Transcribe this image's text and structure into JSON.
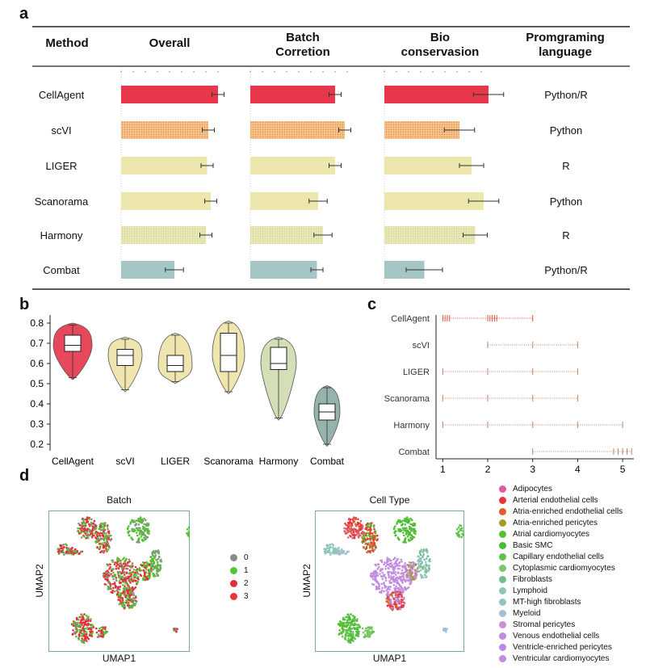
{
  "panel_a": {
    "letter": "a",
    "headers": {
      "method": "Method",
      "overall": "Overall",
      "batch": "Batch\nCorretion",
      "bio": "Bio\nconservasion",
      "lang": "Promgraming\nlanguage"
    },
    "colors": {
      "CellAgent": "#e8374a",
      "scVI": "#f6ba7a",
      "LIGER": "#ede6ad",
      "Scanorama": "#ede6ad",
      "Harmony": "#e4e5ab",
      "Combat": "#a4c6c5"
    }
  },
  "panel_b": {
    "letter": "b"
  },
  "panel_c": {
    "letter": "c"
  },
  "panel_d": {
    "letter": "d"
  },
  "chart_data": [
    {
      "type": "bar",
      "panel": "a",
      "categories": [
        "CellAgent",
        "scVI",
        "LIGER",
        "Scanorama",
        "Harmony",
        "Combat"
      ],
      "languages": [
        "Python/R",
        "Python",
        "R",
        "Python",
        "R",
        "Python/R"
      ],
      "series": [
        {
          "name": "Overall",
          "values": [
            0.8,
            0.72,
            0.71,
            0.74,
            0.7,
            0.44
          ],
          "errors": [
            0.02,
            0.02,
            0.02,
            0.02,
            0.02,
            0.03
          ]
        },
        {
          "name": "Batch\nCorretion",
          "values": [
            0.7,
            0.78,
            0.7,
            0.56,
            0.6,
            0.55
          ],
          "errors": [
            0.02,
            0.02,
            0.02,
            0.03,
            0.03,
            0.02
          ]
        },
        {
          "name": "Bio\nconservasion",
          "values": [
            0.86,
            0.62,
            0.72,
            0.82,
            0.75,
            0.33
          ],
          "errors": [
            0.05,
            0.05,
            0.04,
            0.05,
            0.04,
            0.06
          ]
        }
      ]
    },
    {
      "type": "violin",
      "panel": "b",
      "categories": [
        "CellAgent",
        "scVI",
        "LIGER",
        "Scanorama",
        "Harmony",
        "Combat"
      ],
      "yticks": [
        "0.2",
        "0.3",
        "0.4",
        "0.5",
        "0.6",
        "0.7",
        "0.8"
      ],
      "ylim": [
        0.18,
        0.82
      ],
      "boxes": [
        {
          "min": 0.53,
          "q1": 0.66,
          "median": 0.69,
          "q3": 0.74,
          "max": 0.79
        },
        {
          "min": 0.47,
          "q1": 0.59,
          "median": 0.64,
          "q3": 0.67,
          "max": 0.72
        },
        {
          "min": 0.51,
          "q1": 0.56,
          "median": 0.59,
          "q3": 0.64,
          "max": 0.74
        },
        {
          "min": 0.46,
          "q1": 0.56,
          "median": 0.64,
          "q3": 0.75,
          "max": 0.8
        },
        {
          "min": 0.33,
          "q1": 0.57,
          "median": 0.6,
          "q3": 0.68,
          "max": 0.72
        },
        {
          "min": 0.2,
          "q1": 0.32,
          "median": 0.36,
          "q3": 0.4,
          "max": 0.48
        }
      ],
      "colors": [
        "#e5344a",
        "#ede3a6",
        "#ede3a6",
        "#ede3a6",
        "#cfdcb0",
        "#8aaaa3"
      ]
    },
    {
      "type": "scatter",
      "panel": "c",
      "categories": [
        "CellAgent",
        "scVI",
        "LIGER",
        "Scanorama",
        "Harmony",
        "Combat"
      ],
      "xticks": [
        "1",
        "2",
        "3",
        "4",
        "5"
      ],
      "xlim": [
        0.85,
        5.25
      ],
      "ranges": [
        [
          1,
          3
        ],
        [
          2,
          4
        ],
        [
          1,
          4
        ],
        [
          1,
          4
        ],
        [
          1,
          5
        ],
        [
          3,
          5.2
        ]
      ]
    }
  ],
  "panel_d_batch": {
    "title": "Batch",
    "xlabel": "UMAP1",
    "ylabel": "UMAP2",
    "legend": [
      {
        "label": "0",
        "color": "#8a8a8a"
      },
      {
        "label": "1",
        "color": "#52c42f"
      },
      {
        "label": "2",
        "color": "#e32d3a"
      },
      {
        "label": "3",
        "color": "#e8343f"
      }
    ]
  },
  "panel_d_celltype": {
    "title": "Cell Type",
    "xlabel": "UMAP1",
    "ylabel": "UMAP2",
    "legend": [
      {
        "label": "Adipocytes",
        "color": "#e05aa0"
      },
      {
        "label": "Arterial endothelial cells",
        "color": "#e8343f"
      },
      {
        "label": "Atria-enriched endothelial cells",
        "color": "#d9622e"
      },
      {
        "label": "Atria-enriched pericytes",
        "color": "#a59a2c"
      },
      {
        "label": "Atrial cardiomyocytes",
        "color": "#56c02f"
      },
      {
        "label": "Basic SMC",
        "color": "#4cb93a"
      },
      {
        "label": "Capillary endothelial cells",
        "color": "#5ec24a"
      },
      {
        "label": "Cytoplasmic cardiomyocytes",
        "color": "#7cc86a"
      },
      {
        "label": "Fibroblasts",
        "color": "#6fbf8a"
      },
      {
        "label": "Lymphoid",
        "color": "#8fc6b6"
      },
      {
        "label": "MT-high fibroblasts",
        "color": "#95c2c8"
      },
      {
        "label": "Myeloid",
        "color": "#a3bfd6"
      },
      {
        "label": "Stromal pericytes",
        "color": "#c98fd8"
      },
      {
        "label": "Venous endothelial cells",
        "color": "#c18be2"
      },
      {
        "label": "Ventricle-enriched pericytes",
        "color": "#b98ae6"
      },
      {
        "label": "Ventricular cardiomyocytes",
        "color": "#c58ce3"
      }
    ]
  }
}
